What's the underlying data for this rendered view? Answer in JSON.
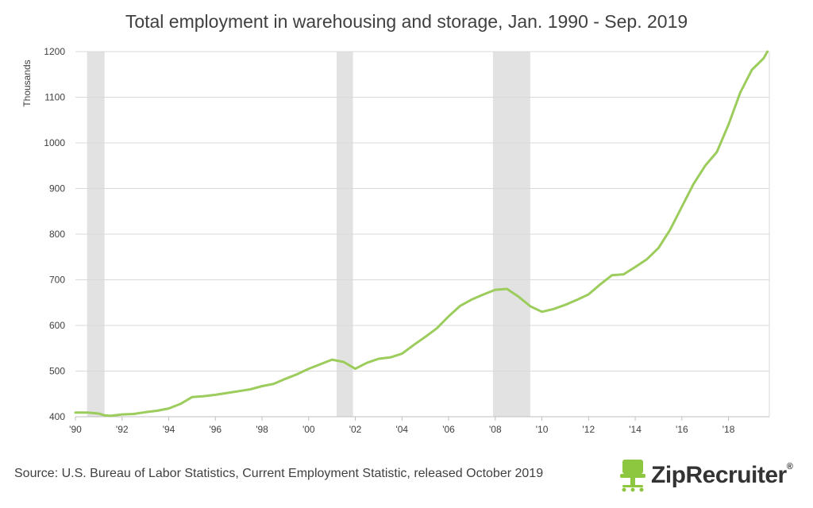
{
  "chart_data": {
    "type": "line",
    "title": "Total employment in warehousing and storage, Jan. 1990 - Sep. 2019",
    "ylabel": "Thousands",
    "xlabel": "",
    "xlim": [
      1990.0,
      2019.75
    ],
    "ylim": [
      400,
      1200
    ],
    "y_ticks": [
      400,
      500,
      600,
      700,
      800,
      900,
      1000,
      1100,
      1200
    ],
    "x_ticks": [
      {
        "x": 1990,
        "label": "'90"
      },
      {
        "x": 1992,
        "label": "'92"
      },
      {
        "x": 1994,
        "label": "'94"
      },
      {
        "x": 1996,
        "label": "'96"
      },
      {
        "x": 1998,
        "label": "'98"
      },
      {
        "x": 2000,
        "label": "'00"
      },
      {
        "x": 2002,
        "label": "'02"
      },
      {
        "x": 2004,
        "label": "'04"
      },
      {
        "x": 2006,
        "label": "'06"
      },
      {
        "x": 2008,
        "label": "'08"
      },
      {
        "x": 2010,
        "label": "'10"
      },
      {
        "x": 2012,
        "label": "'12"
      },
      {
        "x": 2014,
        "label": "'14"
      },
      {
        "x": 2016,
        "label": "'16"
      },
      {
        "x": 2018,
        "label": "'18"
      }
    ],
    "grid": "horizontal",
    "recessions": [
      {
        "start": 1990.5,
        "end": 1991.25
      },
      {
        "start": 2001.2,
        "end": 2001.9
      },
      {
        "start": 2007.9,
        "end": 2009.5
      }
    ],
    "series": [
      {
        "color": "#9ccc5c",
        "x": [
          1990.0,
          1990.5,
          1991.0,
          1991.25,
          1991.5,
          1992.0,
          1992.5,
          1993.0,
          1993.5,
          1994.0,
          1994.5,
          1995.0,
          1995.5,
          1996.0,
          1996.5,
          1997.0,
          1997.5,
          1998.0,
          1998.5,
          1999.0,
          1999.5,
          2000.0,
          2000.5,
          2001.0,
          2001.5,
          2002.0,
          2002.5,
          2003.0,
          2003.5,
          2004.0,
          2004.5,
          2005.0,
          2005.5,
          2006.0,
          2006.5,
          2007.0,
          2007.5,
          2008.0,
          2008.5,
          2009.0,
          2009.5,
          2010.0,
          2010.5,
          2011.0,
          2011.5,
          2012.0,
          2012.5,
          2013.0,
          2013.5,
          2014.0,
          2014.5,
          2015.0,
          2015.5,
          2016.0,
          2016.5,
          2017.0,
          2017.5,
          2018.0,
          2018.5,
          2019.0,
          2019.5,
          2019.67
        ],
        "y": [
          409,
          409,
          407,
          403,
          402,
          405,
          406,
          410,
          413,
          418,
          428,
          443,
          445,
          448,
          452,
          456,
          460,
          467,
          472,
          483,
          493,
          505,
          515,
          525,
          520,
          505,
          518,
          527,
          530,
          538,
          557,
          575,
          594,
          620,
          643,
          657,
          668,
          678,
          680,
          663,
          642,
          630,
          636,
          645,
          656,
          668,
          690,
          710,
          712,
          728,
          745,
          770,
          810,
          860,
          910,
          950,
          980,
          1040,
          1110,
          1160,
          1185,
          1200
        ]
      }
    ],
    "source": "Source: U.S. Bureau of Labor Statistics, Current Employment Statistic, released October 2019",
    "logo": {
      "text": "ZipRecruiter",
      "mark": "®",
      "icon": "chair-icon",
      "icon_color": "#8dc63f"
    }
  }
}
